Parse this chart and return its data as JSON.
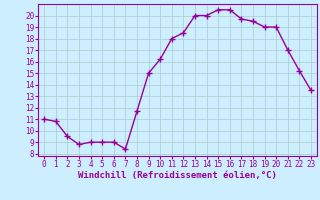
{
  "x": [
    0,
    1,
    2,
    3,
    4,
    5,
    6,
    7,
    8,
    9,
    10,
    11,
    12,
    13,
    14,
    15,
    16,
    17,
    18,
    19,
    20,
    21,
    22,
    23
  ],
  "y": [
    11,
    10.8,
    9.5,
    8.8,
    9.0,
    9.0,
    9.0,
    8.4,
    11.7,
    15.0,
    16.2,
    18.0,
    18.5,
    20.0,
    20.0,
    20.5,
    20.5,
    19.7,
    19.5,
    19.0,
    19.0,
    17.0,
    15.2,
    13.5
  ],
  "line_color": "#990099",
  "marker": "+",
  "marker_size": 4,
  "bg_color": "#cceeff",
  "grid_color": "#aacccc",
  "xlabel": "Windchill (Refroidissement éolien,°C)",
  "ylabel_ticks": [
    8,
    9,
    10,
    11,
    12,
    13,
    14,
    15,
    16,
    17,
    18,
    19,
    20
  ],
  "xlim": [
    -0.5,
    23.5
  ],
  "ylim": [
    7.8,
    21.0
  ],
  "xlabel_fontsize": 6.5,
  "tick_fontsize": 5.5,
  "line_width": 1.0
}
